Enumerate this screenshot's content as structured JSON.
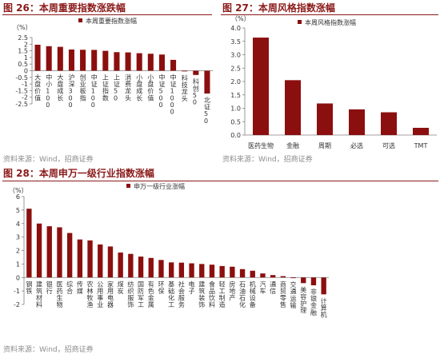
{
  "panels": {
    "fig26": {
      "title": "图 26：本周重要指数涨跌幅",
      "source": "资料来源：Wind，招商证券"
    },
    "fig27": {
      "title": "图 27：本周风格指数涨幅",
      "source": "资料来源：Wind，招商证券"
    },
    "fig28": {
      "title": "图 28：本周申万一级行业指数涨幅",
      "source": "资料来源：Wind，招商证券"
    }
  },
  "colors": {
    "bar": "#8b0f0f",
    "title": "#8b1a1a",
    "axis": "#808080",
    "text": "#333333"
  },
  "chart_data": [
    {
      "id": "fig26",
      "type": "bar",
      "title": "",
      "ylabel": "（%）",
      "legend": "本周重要指数涨幅",
      "legend_position": "top",
      "ylim": [
        -2.5,
        2.5
      ],
      "yticks": [
        -2.5,
        -2,
        -1.5,
        -1,
        -0.5,
        0,
        0.5,
        1,
        1.5,
        2,
        2.5
      ],
      "grid": false,
      "categories": [
        "大盘价值",
        "中小100",
        "大盘成长",
        "沪深300",
        "创业板指",
        "中证100",
        "上证指数",
        "上证50",
        "消费龙头",
        "小盘成长",
        "小盘价值",
        "中证500",
        "中证1000",
        "科技龙头",
        "科创50",
        "北证50"
      ],
      "values": [
        1.96,
        1.85,
        1.8,
        1.6,
        1.58,
        1.57,
        1.5,
        1.4,
        1.38,
        1.32,
        1.28,
        1.22,
        0.82,
        -0.05,
        -0.32,
        -1.72
      ]
    },
    {
      "id": "fig27",
      "type": "bar",
      "title": "",
      "ylabel": "（%）",
      "legend": "本周风格指数涨幅",
      "legend_position": "top",
      "ylim": [
        0,
        4
      ],
      "yticks": [
        0,
        0.5,
        1,
        1.5,
        2,
        2.5,
        3,
        3.5,
        4
      ],
      "ytick_format": "0.0",
      "grid": false,
      "categories": [
        "医药生物",
        "金融",
        "周期",
        "必选",
        "可选",
        "TMT"
      ],
      "values": [
        3.64,
        2.05,
        1.18,
        0.96,
        0.85,
        0.27
      ]
    },
    {
      "id": "fig28",
      "type": "bar",
      "title": "",
      "ylabel": "（%）",
      "legend": "申万一级行业涨幅",
      "legend_position": "top",
      "ylim": [
        -2,
        6
      ],
      "yticks": [
        -2,
        -1,
        0,
        1,
        2,
        3,
        4,
        5,
        6
      ],
      "grid": false,
      "categories": [
        "钢铁",
        "建筑材料",
        "银行",
        "医药生物",
        "综合",
        "传媒",
        "农林牧渔",
        "公用事业",
        "家用电器",
        "煤炭",
        "纺织服饰",
        "国防军工",
        "有色金属",
        "环保",
        "基础化工",
        "社会服务",
        "电子",
        "建筑装饰",
        "食品饮料",
        "轻工制造",
        "房地产",
        "石油石化",
        "机械设备",
        "汽车",
        "通信",
        "商贸零售",
        "交通运输",
        "美容护理",
        "非银金融",
        "计算机"
      ],
      "values": [
        5.1,
        4.0,
        3.8,
        3.72,
        3.3,
        2.82,
        2.75,
        2.45,
        2.3,
        1.85,
        1.75,
        1.55,
        1.45,
        1.3,
        1.12,
        1.1,
        1.05,
        1.0,
        0.95,
        0.85,
        0.8,
        0.62,
        0.5,
        0.3,
        0.18,
        0.1,
        -0.05,
        -0.42,
        -0.58,
        -1.25
      ]
    }
  ]
}
